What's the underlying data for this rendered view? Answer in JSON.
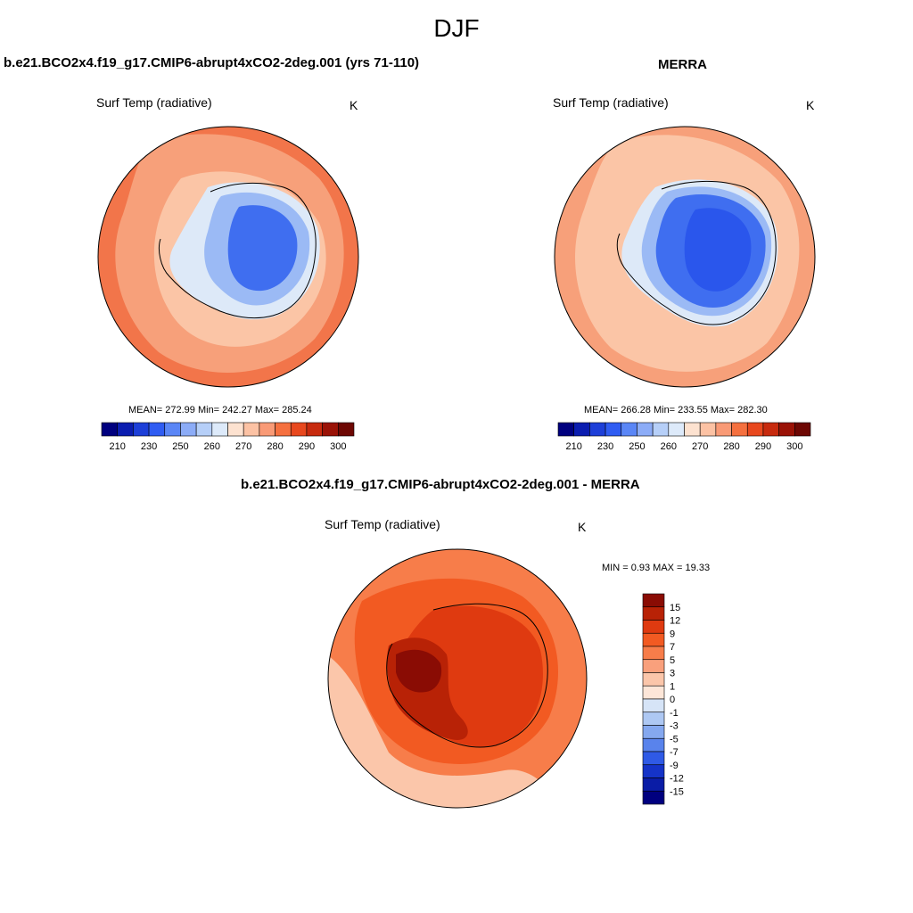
{
  "figure_title": "DJF",
  "panels": [
    {
      "title": "b.e21.BCO2x4.f19_g17.CMIP6-abrupt4xCO2-2deg.001 (yrs 71-110)",
      "variable": "Surf Temp (radiative)",
      "units": "K",
      "stats": "MEAN= 272.99  Min= 242.27  Max= 285.24",
      "mean": 272.99,
      "min": 242.27,
      "max": 285.24
    },
    {
      "title": "MERRA",
      "variable": "Surf Temp (radiative)",
      "units": "K",
      "stats": "MEAN= 266.28  Min= 233.55  Max= 282.30",
      "mean": 266.28,
      "min": 233.55,
      "max": 282.3
    },
    {
      "title": "b.e21.BCO2x4.f19_g17.CMIP6-abrupt4xCO2-2deg.001 - MERRA",
      "variable": "Surf Temp (radiative)",
      "units": "K",
      "stats": "MIN =   0.93 MAX =  19.33",
      "min": 0.93,
      "max": 19.33
    }
  ],
  "colorbar_abs": {
    "tick_labels": [
      "210",
      "230",
      "250",
      "260",
      "270",
      "280",
      "290",
      "300"
    ],
    "colors": [
      "#00007f",
      "#0b1db0",
      "#1d3fd8",
      "#2f5cf2",
      "#5a86f6",
      "#8cacf7",
      "#b6cff8",
      "#ddeafa",
      "#fde2d0",
      "#fcc2a4",
      "#f99a76",
      "#f5703f",
      "#e8481e",
      "#c72a0e",
      "#9a1206",
      "#6d0703"
    ]
  },
  "colorbar_diff": {
    "tick_labels": [
      "15",
      "12",
      "9",
      "7",
      "5",
      "3",
      "1",
      "0",
      "-1",
      "-3",
      "-5",
      "-7",
      "-9",
      "-12",
      "-15"
    ],
    "colors": [
      "#8a0c04",
      "#b82206",
      "#df3a10",
      "#f25a22",
      "#f77d4a",
      "#f9a07c",
      "#fbc6aa",
      "#fde6d8",
      "#d6e4f7",
      "#aec8f3",
      "#85a8ef",
      "#5983ec",
      "#2f5ae6",
      "#1533c8",
      "#0a1ca6",
      "#00007f"
    ]
  },
  "map_colors": {
    "ocean_warm": "#f2754a",
    "ocean_mid": "#f7a07a",
    "ocean_light": "#fbc5a6",
    "ice_light": "#dde9f8",
    "ice_mid": "#9bbaf5",
    "ice_dark": "#3f6ef0",
    "ice_core": "#2a56ec",
    "diff_ocean": "#f77d4a",
    "diff_ocean_light": "#fbc6aa",
    "diff_mid": "#f25a22",
    "diff_land": "#df3a10",
    "diff_land_dark": "#b82206",
    "diff_land_core": "#8a0c04"
  }
}
